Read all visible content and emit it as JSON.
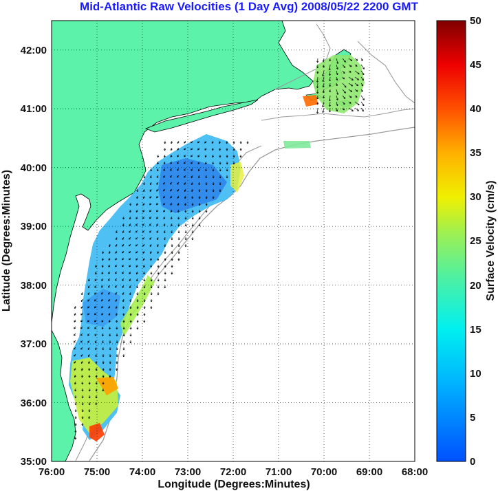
{
  "title": "Mid-Atlantic Raw Velocities (1 Day Avg) 2008/05/22 2200 GMT",
  "map": {
    "xlabel": "Longitude (Degrees:Minutes)",
    "ylabel": "Latitude (Degrees:Minutes)",
    "lon_range": [
      -76,
      -68
    ],
    "lat_range": [
      35,
      42.5
    ],
    "lon_ticks": [
      "76:00",
      "75:00",
      "74:00",
      "73:00",
      "72:00",
      "71:00",
      "70:00",
      "69:00",
      "68:00"
    ],
    "lat_ticks": [
      "35:00",
      "36:00",
      "37:00",
      "38:00",
      "39:00",
      "40:00",
      "41:00",
      "42:00"
    ],
    "grid": "dotted",
    "land_color": "#5cf2a9",
    "vector_color": "#000000"
  },
  "colorbar": {
    "label": "Surface Velocity (cm/s)",
    "min": 0,
    "max": 50,
    "ticks": [
      "0",
      "5",
      "10",
      "15",
      "20",
      "25",
      "30",
      "35",
      "40",
      "45",
      "50"
    ],
    "colormap": "jet"
  }
}
